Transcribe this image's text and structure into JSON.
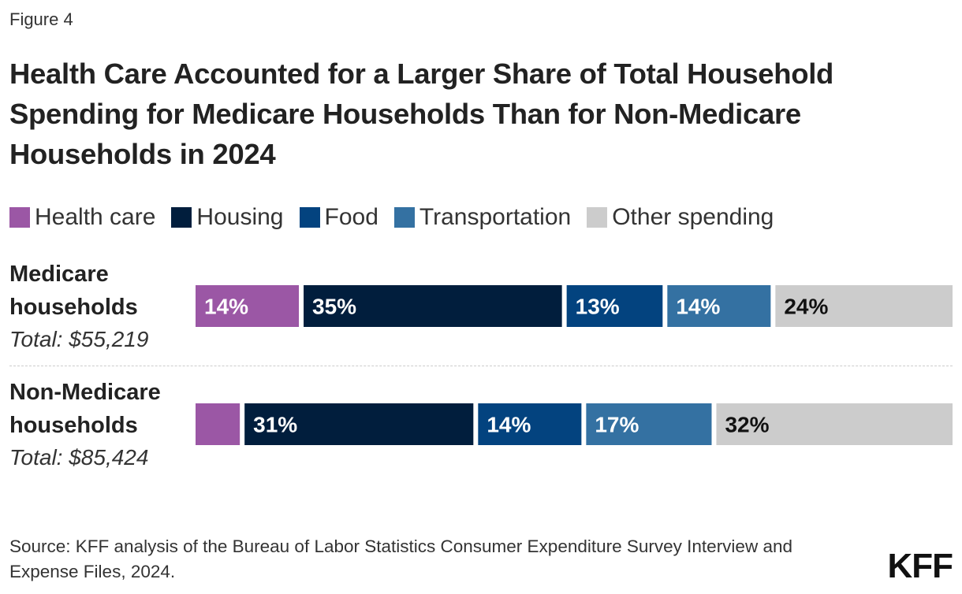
{
  "figure_label": "Figure 4",
  "title": "Health Care Accounted for a Larger Share of Total Household Spending for Medicare Households Than for Non-Medicare Households in 2024",
  "source": "Source: KFF analysis of the Bureau of Labor Statistics Consumer Expenditure Survey Interview and Expense Files, 2024.",
  "logo_text": "KFF",
  "chart_data": {
    "type": "bar",
    "orientation": "horizontal",
    "stacked": true,
    "title": "Health Care Accounted for a Larger Share of Total Household Spending for Medicare Households Than for Non-Medicare Households in 2024",
    "legend_position": "top",
    "grid": false,
    "xlim": [
      0,
      100
    ],
    "unit": "%",
    "categories": [
      {
        "name": "Medicare households",
        "total": "Total: $55,219"
      },
      {
        "name": "Non-Medicare households",
        "total": "Total: $85,424"
      }
    ],
    "series": [
      {
        "name": "Health care",
        "color": "#9b57a5",
        "label_color": "#ffffff",
        "values": [
          14,
          6
        ],
        "labels": [
          "14%",
          ""
        ]
      },
      {
        "name": "Housing",
        "color": "#011e3d",
        "label_color": "#ffffff",
        "values": [
          35,
          31
        ],
        "labels": [
          "35%",
          "31%"
        ]
      },
      {
        "name": "Food",
        "color": "#03437f",
        "label_color": "#ffffff",
        "values": [
          13,
          14
        ],
        "labels": [
          "13%",
          "14%"
        ]
      },
      {
        "name": "Transportation",
        "color": "#3471a2",
        "label_color": "#ffffff",
        "values": [
          14,
          17
        ],
        "labels": [
          "14%",
          "17%"
        ]
      },
      {
        "name": "Other spending",
        "color": "#cccccc",
        "label_color": "#111111",
        "values": [
          24,
          32
        ],
        "labels": [
          "24%",
          "32%"
        ]
      }
    ]
  }
}
